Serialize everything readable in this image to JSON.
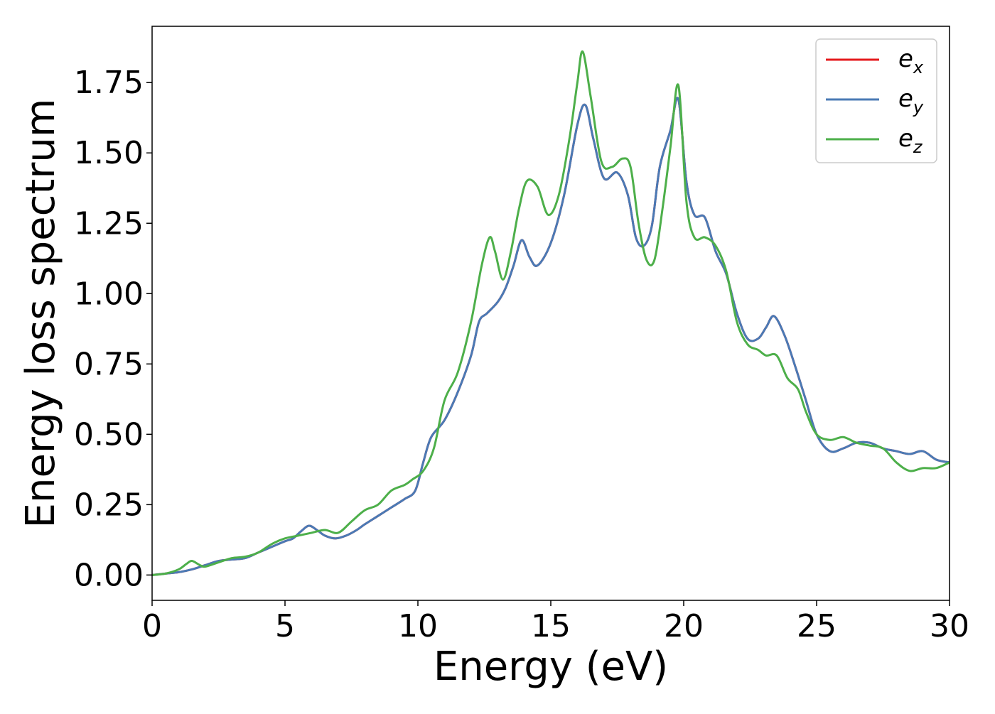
{
  "chart_data": {
    "type": "line",
    "title": "",
    "xlabel": "Energy (eV)",
    "ylabel": "Energy loss spectrum",
    "xlim": [
      0,
      30
    ],
    "ylim": [
      -0.09,
      1.95
    ],
    "xticks": [
      0,
      5,
      10,
      15,
      20,
      25,
      30
    ],
    "xtick_labels": [
      "0",
      "5",
      "10",
      "15",
      "20",
      "25",
      "30"
    ],
    "yticks": [
      0.0,
      0.25,
      0.5,
      0.75,
      1.0,
      1.25,
      1.5,
      1.75
    ],
    "ytick_labels": [
      "0.00",
      "0.25",
      "0.50",
      "0.75",
      "1.00",
      "1.25",
      "1.50",
      "1.75"
    ],
    "grid": false,
    "legend_position": "top-right",
    "series": [
      {
        "name": "e_x",
        "label_base": "e",
        "label_sub": "x",
        "color": "#e41a1c",
        "x": [
          0,
          0.5,
          1,
          1.5,
          2,
          2.5,
          3,
          3.5,
          4,
          4.5,
          5,
          5.3,
          5.6,
          5.9,
          6.2,
          6.5,
          6.9,
          7.3,
          7.7,
          8,
          8.5,
          9,
          9.5,
          9.9,
          10.2,
          10.5,
          11,
          11.5,
          12,
          12.3,
          12.6,
          13,
          13.3,
          13.6,
          13.9,
          14.2,
          14.5,
          15,
          15.5,
          16,
          16.3,
          16.6,
          17,
          17.5,
          17.9,
          18.2,
          18.5,
          18.8,
          19.1,
          19.5,
          19.8,
          20.1,
          20.4,
          20.8,
          21.2,
          21.6,
          22,
          22.4,
          22.8,
          23.1,
          23.4,
          23.8,
          24.2,
          24.6,
          25,
          25.5,
          26,
          26.5,
          27,
          27.5,
          28,
          28.5,
          29,
          29.5,
          30
        ],
        "y": [
          0.0,
          0.005,
          0.01,
          0.02,
          0.035,
          0.05,
          0.055,
          0.06,
          0.08,
          0.1,
          0.12,
          0.13,
          0.155,
          0.175,
          0.16,
          0.14,
          0.13,
          0.14,
          0.16,
          0.18,
          0.21,
          0.24,
          0.27,
          0.3,
          0.4,
          0.49,
          0.55,
          0.65,
          0.78,
          0.9,
          0.93,
          0.97,
          1.02,
          1.1,
          1.19,
          1.13,
          1.1,
          1.18,
          1.35,
          1.6,
          1.67,
          1.55,
          1.41,
          1.43,
          1.35,
          1.2,
          1.17,
          1.24,
          1.45,
          1.58,
          1.69,
          1.4,
          1.28,
          1.27,
          1.15,
          1.07,
          0.93,
          0.84,
          0.84,
          0.88,
          0.92,
          0.85,
          0.74,
          0.62,
          0.5,
          0.44,
          0.45,
          0.47,
          0.47,
          0.45,
          0.44,
          0.43,
          0.44,
          0.41,
          0.4
        ]
      },
      {
        "name": "e_y",
        "label_base": "e",
        "label_sub": "y",
        "color": "#4a7ab5",
        "x": [
          0,
          0.5,
          1,
          1.5,
          2,
          2.5,
          3,
          3.5,
          4,
          4.5,
          5,
          5.3,
          5.6,
          5.9,
          6.2,
          6.5,
          6.9,
          7.3,
          7.7,
          8,
          8.5,
          9,
          9.5,
          9.9,
          10.2,
          10.5,
          11,
          11.5,
          12,
          12.3,
          12.6,
          13,
          13.3,
          13.6,
          13.9,
          14.2,
          14.5,
          15,
          15.5,
          16,
          16.3,
          16.6,
          17,
          17.5,
          17.9,
          18.2,
          18.5,
          18.8,
          19.1,
          19.5,
          19.8,
          20.1,
          20.4,
          20.8,
          21.2,
          21.6,
          22,
          22.4,
          22.8,
          23.1,
          23.4,
          23.8,
          24.2,
          24.6,
          25,
          25.5,
          26,
          26.5,
          27,
          27.5,
          28,
          28.5,
          29,
          29.5,
          30
        ],
        "y": [
          0.0,
          0.005,
          0.01,
          0.02,
          0.035,
          0.05,
          0.055,
          0.06,
          0.08,
          0.1,
          0.12,
          0.13,
          0.155,
          0.175,
          0.16,
          0.14,
          0.13,
          0.14,
          0.16,
          0.18,
          0.21,
          0.24,
          0.27,
          0.3,
          0.4,
          0.49,
          0.55,
          0.65,
          0.78,
          0.9,
          0.93,
          0.97,
          1.02,
          1.1,
          1.19,
          1.13,
          1.1,
          1.18,
          1.35,
          1.6,
          1.67,
          1.55,
          1.41,
          1.43,
          1.35,
          1.2,
          1.17,
          1.24,
          1.45,
          1.58,
          1.69,
          1.4,
          1.28,
          1.27,
          1.15,
          1.07,
          0.93,
          0.84,
          0.84,
          0.88,
          0.92,
          0.85,
          0.74,
          0.62,
          0.5,
          0.44,
          0.45,
          0.47,
          0.47,
          0.45,
          0.44,
          0.43,
          0.44,
          0.41,
          0.4
        ]
      },
      {
        "name": "e_z",
        "label_base": "e",
        "label_sub": "z",
        "color": "#4daf4a",
        "x": [
          0,
          0.5,
          1,
          1.3,
          1.5,
          1.8,
          2,
          2.5,
          3,
          3.5,
          4,
          4.5,
          5,
          5.5,
          6,
          6.5,
          7,
          7.5,
          8,
          8.5,
          9,
          9.5,
          9.8,
          10.2,
          10.6,
          11,
          11.5,
          12,
          12.4,
          12.7,
          12.9,
          13.2,
          13.5,
          13.8,
          14.1,
          14.5,
          14.9,
          15.3,
          15.7,
          16,
          16.2,
          16.5,
          16.9,
          17.3,
          17.7,
          18,
          18.3,
          18.6,
          18.9,
          19.2,
          19.5,
          19.8,
          20.1,
          20.4,
          20.8,
          21.2,
          21.6,
          22,
          22.4,
          22.8,
          23.1,
          23.5,
          23.9,
          24.3,
          24.6,
          25,
          25.5,
          26,
          26.5,
          27,
          27.5,
          28,
          28.5,
          29,
          29.5,
          30
        ],
        "y": [
          0.0,
          0.005,
          0.02,
          0.04,
          0.05,
          0.035,
          0.03,
          0.045,
          0.06,
          0.065,
          0.08,
          0.11,
          0.13,
          0.14,
          0.15,
          0.16,
          0.15,
          0.19,
          0.23,
          0.25,
          0.3,
          0.32,
          0.34,
          0.37,
          0.45,
          0.62,
          0.72,
          0.9,
          1.1,
          1.2,
          1.15,
          1.05,
          1.15,
          1.3,
          1.4,
          1.38,
          1.28,
          1.35,
          1.55,
          1.75,
          1.86,
          1.7,
          1.47,
          1.45,
          1.48,
          1.45,
          1.25,
          1.12,
          1.12,
          1.3,
          1.52,
          1.74,
          1.33,
          1.2,
          1.2,
          1.17,
          1.08,
          0.9,
          0.82,
          0.8,
          0.78,
          0.78,
          0.7,
          0.66,
          0.58,
          0.5,
          0.48,
          0.49,
          0.47,
          0.46,
          0.45,
          0.4,
          0.37,
          0.38,
          0.38,
          0.4
        ]
      }
    ]
  }
}
